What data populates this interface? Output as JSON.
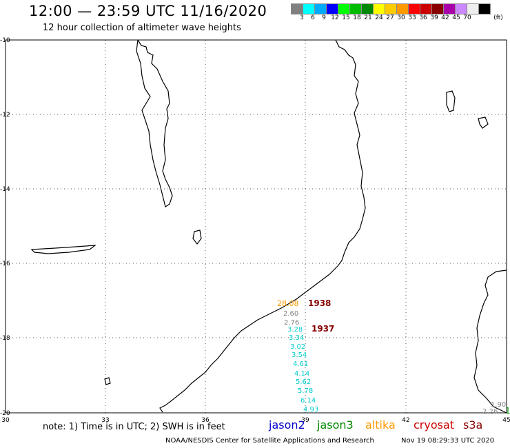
{
  "header": {
    "title": "12:00 — 23:59 UTC 11/16/2020",
    "subtitle": "12 hour collection of altimeter wave heights"
  },
  "legend": {
    "labels": [
      "3",
      "6",
      "9",
      "12",
      "15",
      "18",
      "21",
      "24",
      "27",
      "30",
      "33",
      "36",
      "39",
      "42",
      "45",
      "70"
    ],
    "unit": "(ft)",
    "colors": [
      "#808080",
      "#00ffff",
      "#00aaff",
      "#0000ff",
      "#00ff00",
      "#00bb00",
      "#008800",
      "#ffff00",
      "#ffcc00",
      "#ff9900",
      "#ff0000",
      "#cc0000",
      "#880000",
      "#aa00aa",
      "#cc88ff",
      "#eeeeee",
      "#000000"
    ]
  },
  "map": {
    "lat_labels": [
      "-10",
      "-12",
      "-14",
      "-16",
      "-18",
      "-20"
    ],
    "lon_labels": [
      "30",
      "33",
      "36",
      "39",
      "42",
      "45"
    ],
    "track_labels": [
      {
        "text": "28.08",
        "color": "#ff9900"
      },
      {
        "text": "1938",
        "color": "#880000"
      },
      {
        "text": "2.60",
        "color": "#808080"
      },
      {
        "text": "2.76",
        "color": "#808080"
      },
      {
        "text": "3.28",
        "color": "#00cccc"
      },
      {
        "text": "1937",
        "color": "#880000"
      },
      {
        "text": "3.34",
        "color": "#00cccc"
      },
      {
        "text": "3.02",
        "color": "#00cccc"
      },
      {
        "text": "3.54",
        "color": "#00cccc"
      },
      {
        "text": "4.61",
        "color": "#00cccc"
      },
      {
        "text": "4.14",
        "color": "#00cccc"
      },
      {
        "text": "5.62",
        "color": "#00cccc"
      },
      {
        "text": "5.78",
        "color": "#00cccc"
      },
      {
        "text": "6.14",
        "color": "#00cccc"
      },
      {
        "text": "4.93",
        "color": "#00cccc"
      },
      {
        "text": "1.90",
        "color": "#808080"
      },
      {
        "text": "2.26",
        "color": "#808080"
      },
      {
        "text": "1",
        "color": "#008800"
      }
    ]
  },
  "footer": {
    "note": "note:  1) Time is in UTC; 2) SWH is in feet",
    "satellites": [
      {
        "name": "jason2",
        "color": "#0000cc"
      },
      {
        "name": "jason3",
        "color": "#008800"
      },
      {
        "name": "altika",
        "color": "#ff9900"
      },
      {
        "name": "cryosat",
        "color": "#cc0000"
      },
      {
        "name": "s3a",
        "color": "#880000"
      }
    ],
    "credit": "NOAA/NESDIS Center for Satellite Applications and Research",
    "datetime": "Nov 19 08:29:33 UTC 2020"
  }
}
